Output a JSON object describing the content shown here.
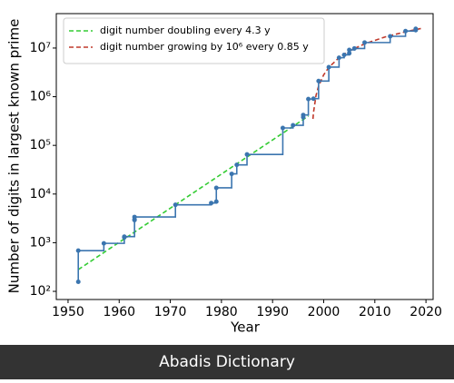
{
  "chart_data": {
    "type": "line",
    "xlabel": "Year",
    "ylabel": "Number of digits in largest known prime",
    "xlim": [
      1947.7,
      2021.4
    ],
    "xticks": [
      1950,
      1960,
      1970,
      1980,
      1990,
      2000,
      2010,
      2020
    ],
    "ylim": [
      68,
      51000000
    ],
    "yscale": "log",
    "yticks": [
      {
        "value": 100,
        "label": "10²"
      },
      {
        "value": 1000,
        "label": "10³"
      },
      {
        "value": 10000,
        "label": "10⁴"
      },
      {
        "value": 100000,
        "label": "10⁵"
      },
      {
        "value": 1000000,
        "label": "10⁶"
      },
      {
        "value": 10000000,
        "label": "10⁷"
      }
    ],
    "legend": "upper left",
    "series": [
      {
        "name": "digit number doubling every 4.3 y",
        "color": "#33cc33",
        "style": "dashed",
        "x": [
          1952,
          1997
        ],
        "values": [
          280,
          400000
        ]
      },
      {
        "name": "digit number growing by 10⁶ every 0.85 y",
        "color": "#c0392b",
        "style": "dashed",
        "x": [
          1997.9,
          1998,
          1998.5,
          1999,
          2000,
          2001,
          2003,
          2005,
          2008,
          2012,
          2016,
          2019
        ],
        "values": [
          350000,
          470000,
          1060000,
          1650000,
          2820000,
          4000000,
          6350000,
          8710000,
          12200000,
          16900000,
          21600000,
          25200000
        ]
      },
      {
        "color": "#3b75af",
        "style": "step",
        "x": [
          1952,
          1952,
          1957,
          1961,
          1961,
          1963,
          1963,
          1963,
          1971,
          1978,
          1979,
          1979,
          1982,
          1983,
          1985,
          1992,
          1994,
          1996,
          1996,
          1997,
          1998,
          1999,
          2001,
          2003,
          2004,
          2005,
          2005,
          2006,
          2008,
          2013,
          2016,
          2018,
          2018
        ],
        "values": [
          157,
          687,
          969,
          1281,
          1332,
          2917,
          2993,
          3376,
          6002,
          6533,
          6987,
          13395,
          25962,
          39751,
          65050,
          227832,
          258716,
          378632,
          420921,
          895932,
          909526,
          2098960,
          4053946,
          6320430,
          7235733,
          7816230,
          9152052,
          9808358,
          12978189,
          17425170,
          22338618,
          23249425,
          24862048
        ]
      }
    ]
  },
  "footer": "Abadis Dictionary"
}
